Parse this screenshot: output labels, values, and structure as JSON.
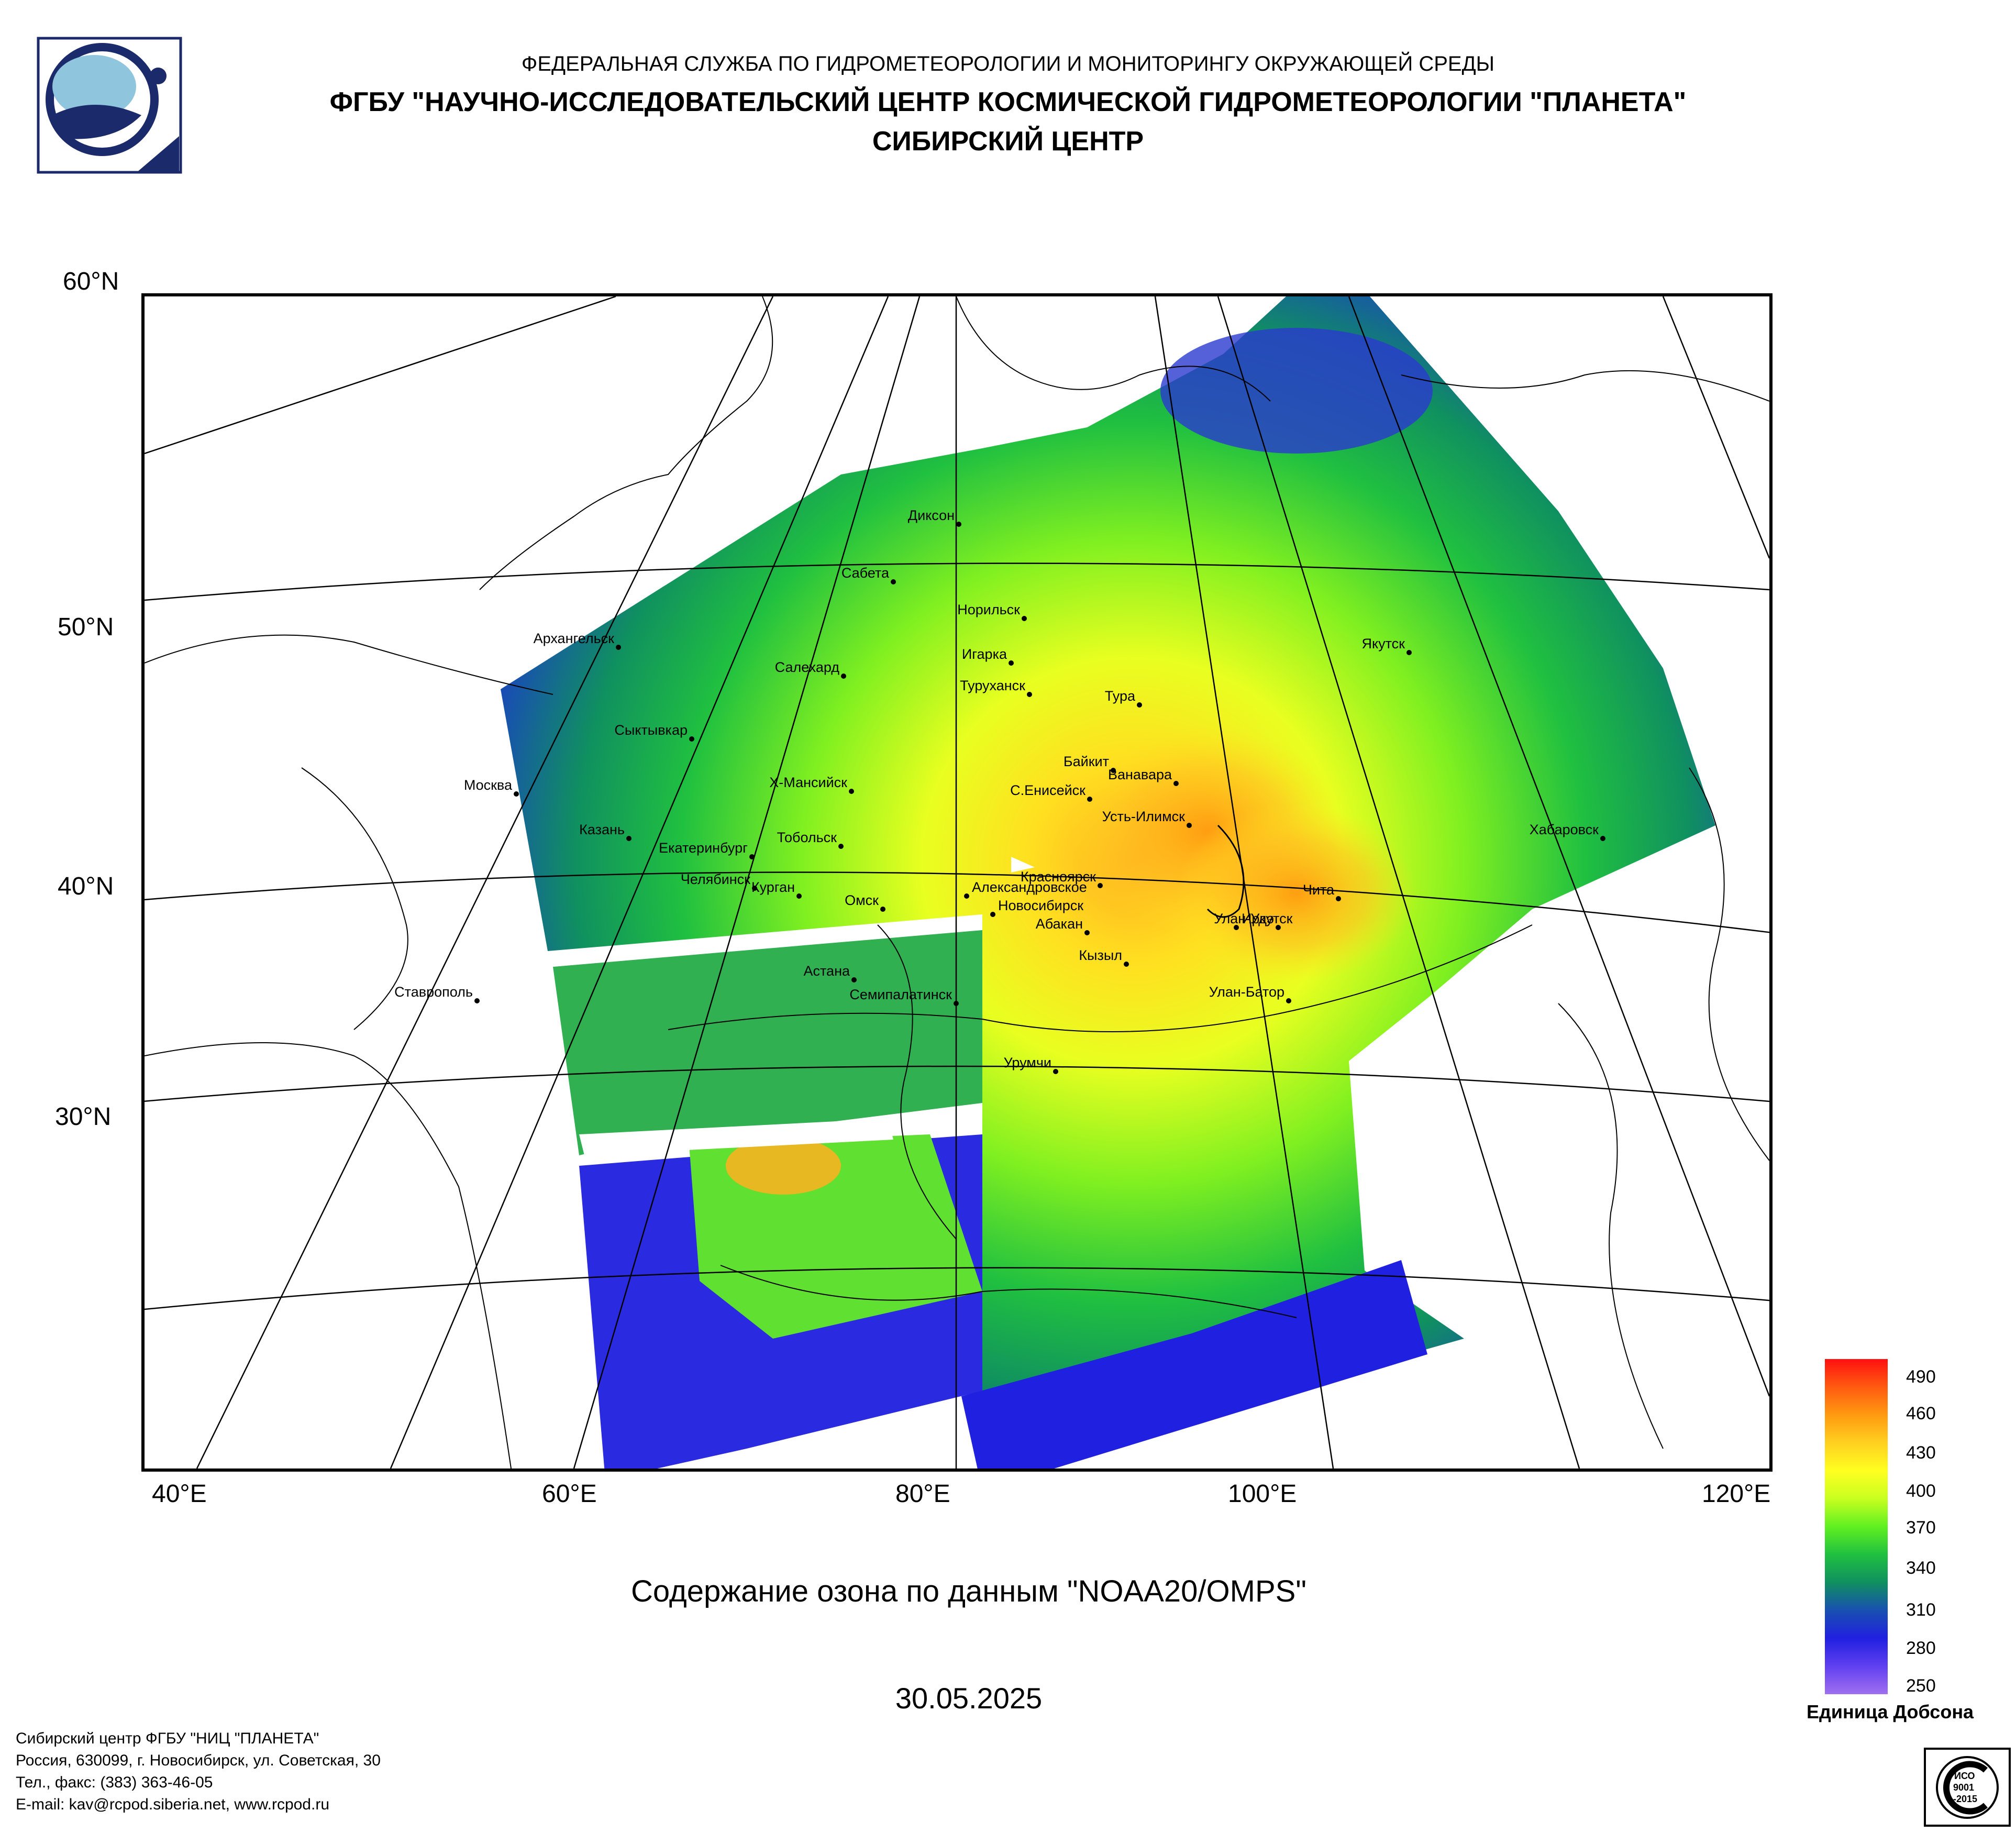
{
  "header": {
    "line1": "ФЕДЕРАЛЬНАЯ СЛУЖБА ПО ГИДРОМЕТЕОРОЛОГИИ И МОНИТОРИНГУ ОКРУЖАЮЩЕЙ СРЕДЫ",
    "line2": "ФГБУ \"НАУЧНО-ИССЛЕДОВАТЕЛЬСКИЙ ЦЕНТР КОСМИЧЕСКОЙ ГИДРОМЕТЕОРОЛОГИИ \"ПЛАНЕТА\"",
    "line3": "СИБИРСКИЙ ЦЕНТР"
  },
  "map": {
    "lat_labels": [
      "60°N",
      "50°N",
      "40°N",
      "30°N"
    ],
    "lon_labels": [
      "40°E",
      "60°E",
      "80°E",
      "100°E",
      "120°E"
    ],
    "cities": [
      {
        "name": "Диксон"
      },
      {
        "name": "Сабета"
      },
      {
        "name": "Норильск"
      },
      {
        "name": "Архангельск"
      },
      {
        "name": "Игарка"
      },
      {
        "name": "Салехард"
      },
      {
        "name": "Якутск"
      },
      {
        "name": "Туруханск"
      },
      {
        "name": "Тура"
      },
      {
        "name": "Сыктывкар"
      },
      {
        "name": "Байкит"
      },
      {
        "name": "Ванавара"
      },
      {
        "name": "Москва"
      },
      {
        "name": "Х-Мансийск"
      },
      {
        "name": "С.Енисейск"
      },
      {
        "name": "Усть-Илимск"
      },
      {
        "name": "Хабаровск"
      },
      {
        "name": "Казань"
      },
      {
        "name": "Тобольск"
      },
      {
        "name": "Екатеринбург"
      },
      {
        "name": "Красноярск"
      },
      {
        "name": "Челябинск"
      },
      {
        "name": "Курган"
      },
      {
        "name": "Чита"
      },
      {
        "name": "Александровское"
      },
      {
        "name": "Омск"
      },
      {
        "name": "Абакан"
      },
      {
        "name": "Новосибирск"
      },
      {
        "name": "Улан-Удэ"
      },
      {
        "name": "Иркутск"
      },
      {
        "name": "Кызыл"
      },
      {
        "name": "Астана"
      },
      {
        "name": "Ставрополь"
      },
      {
        "name": "Улан-Батор"
      },
      {
        "name": "Семипалатинск"
      },
      {
        "name": "Урумчи"
      }
    ]
  },
  "caption": "Содержание озона по данным \"NOAA20/OMPS\"",
  "date": "30.05.2025",
  "legend": {
    "ticks": [
      "490",
      "460",
      "430",
      "400",
      "370",
      "340",
      "310",
      "280",
      "250"
    ],
    "unit": "Единица Добсона",
    "colors_top_to_bottom": [
      "#ff1010",
      "#ff5a10",
      "#ff9a10",
      "#ffd020",
      "#ffff20",
      "#c8ff20",
      "#60f020",
      "#20c040",
      "#109060",
      "#1850b0",
      "#2020e0",
      "#6040f0",
      "#a070f0"
    ]
  },
  "footer": {
    "line1": "Сибирский центр ФГБУ \"НИЦ \"ПЛАНЕТА\"",
    "line2": "Россия, 630099, г. Новосибирск, ул. Советская, 30",
    "line3": "Тел., факс: (383) 363-46-05",
    "line4": "E-mail: kav@rcpod.siberia.net, www.rcpod.ru"
  },
  "iso_badge": {
    "text1": "ИСО",
    "text2": "9001",
    "text3": "-2015"
  }
}
